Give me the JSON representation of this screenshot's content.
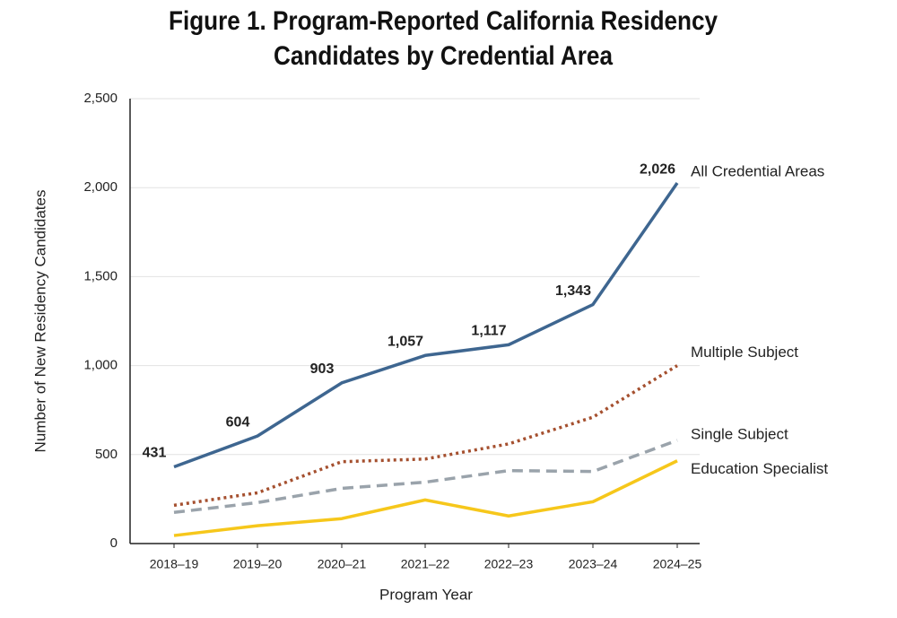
{
  "chart_data": {
    "type": "line",
    "title": [
      "Figure 1. Program-Reported California Residency",
      "Candidates by Credential Area"
    ],
    "y_label": "Number of New Residency Candidates",
    "x_label": "Program Year",
    "categories": [
      "2018–19",
      "2019–20",
      "2020–21",
      "2021–22",
      "2022–23",
      "2023–24",
      "2024–25"
    ],
    "series": [
      {
        "name": "All Credential Areas",
        "color": "#3e6690",
        "dash": "solid",
        "values": [
          431,
          604,
          903,
          1057,
          1117,
          1343,
          2026
        ],
        "value_labels": [
          "431",
          "604",
          "903",
          "1,057",
          "1,117",
          "1,343",
          "2,026"
        ]
      },
      {
        "name": "Multiple Subject",
        "color": "#a5502f",
        "dash": "dotted",
        "values": [
          215,
          285,
          460,
          475,
          560,
          710,
          1000
        ]
      },
      {
        "name": "Single Subject",
        "color": "#9aa3ab",
        "dash": "dashed",
        "values": [
          175,
          230,
          310,
          345,
          410,
          405,
          580
        ]
      },
      {
        "name": "Education Specialist",
        "color": "#f6c71b",
        "dash": "solid",
        "values": [
          45,
          100,
          140,
          245,
          155,
          235,
          465
        ]
      }
    ],
    "ylim": [
      0,
      2500
    ],
    "yticks": [
      0,
      500,
      {
        "value": 1000,
        "label": "1,000"
      },
      {
        "value": 1500,
        "label": "1,500"
      },
      {
        "value": 2000,
        "label": "2,000"
      },
      {
        "value": 2500,
        "label": "2,500"
      }
    ],
    "grid": true
  }
}
